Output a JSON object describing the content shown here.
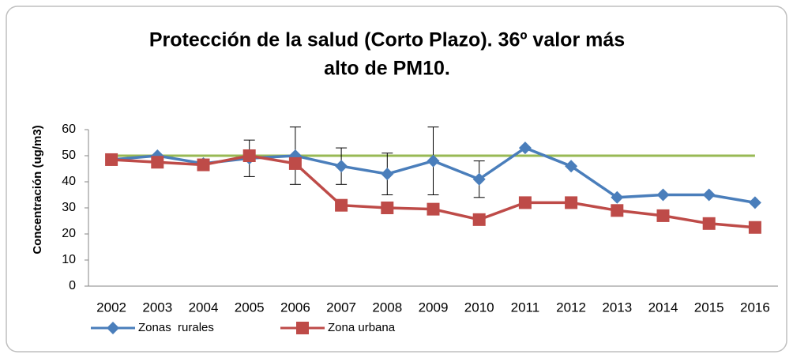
{
  "chart_data": {
    "type": "line",
    "title": [
      "Protección de la salud (Corto Plazo). 36º valor más",
      "alto de PM10."
    ],
    "y_label": "Concentración (ug/m3)",
    "categories": [
      "2002",
      "2003",
      "2004",
      "2005",
      "2006",
      "2007",
      "2008",
      "2009",
      "2010",
      "2011",
      "2012",
      "2013",
      "2014",
      "2015",
      "2016"
    ],
    "series": [
      {
        "name": "Zonas  rurales",
        "color": "#4a7ebb",
        "marker": "diamond",
        "values": [
          48.5,
          50,
          47,
          49,
          50,
          46,
          43,
          48,
          41,
          53,
          46,
          34,
          35,
          35,
          32
        ],
        "errors": [
          null,
          null,
          null,
          7,
          11,
          7,
          8,
          13,
          7,
          null,
          null,
          null,
          null,
          null,
          null
        ]
      },
      {
        "name": "Zona urbana",
        "color": "#be4b48",
        "marker": "square",
        "values": [
          48.5,
          47.5,
          46.5,
          50,
          47,
          31,
          30,
          29.5,
          25.5,
          32,
          32,
          29,
          27,
          24,
          22.5
        ]
      }
    ],
    "reference_line": {
      "value": 50,
      "color": "#98b954"
    },
    "ylim": [
      0,
      60
    ],
    "yticks": [
      0,
      10,
      20,
      30,
      40,
      50,
      60
    ],
    "grid": false
  }
}
